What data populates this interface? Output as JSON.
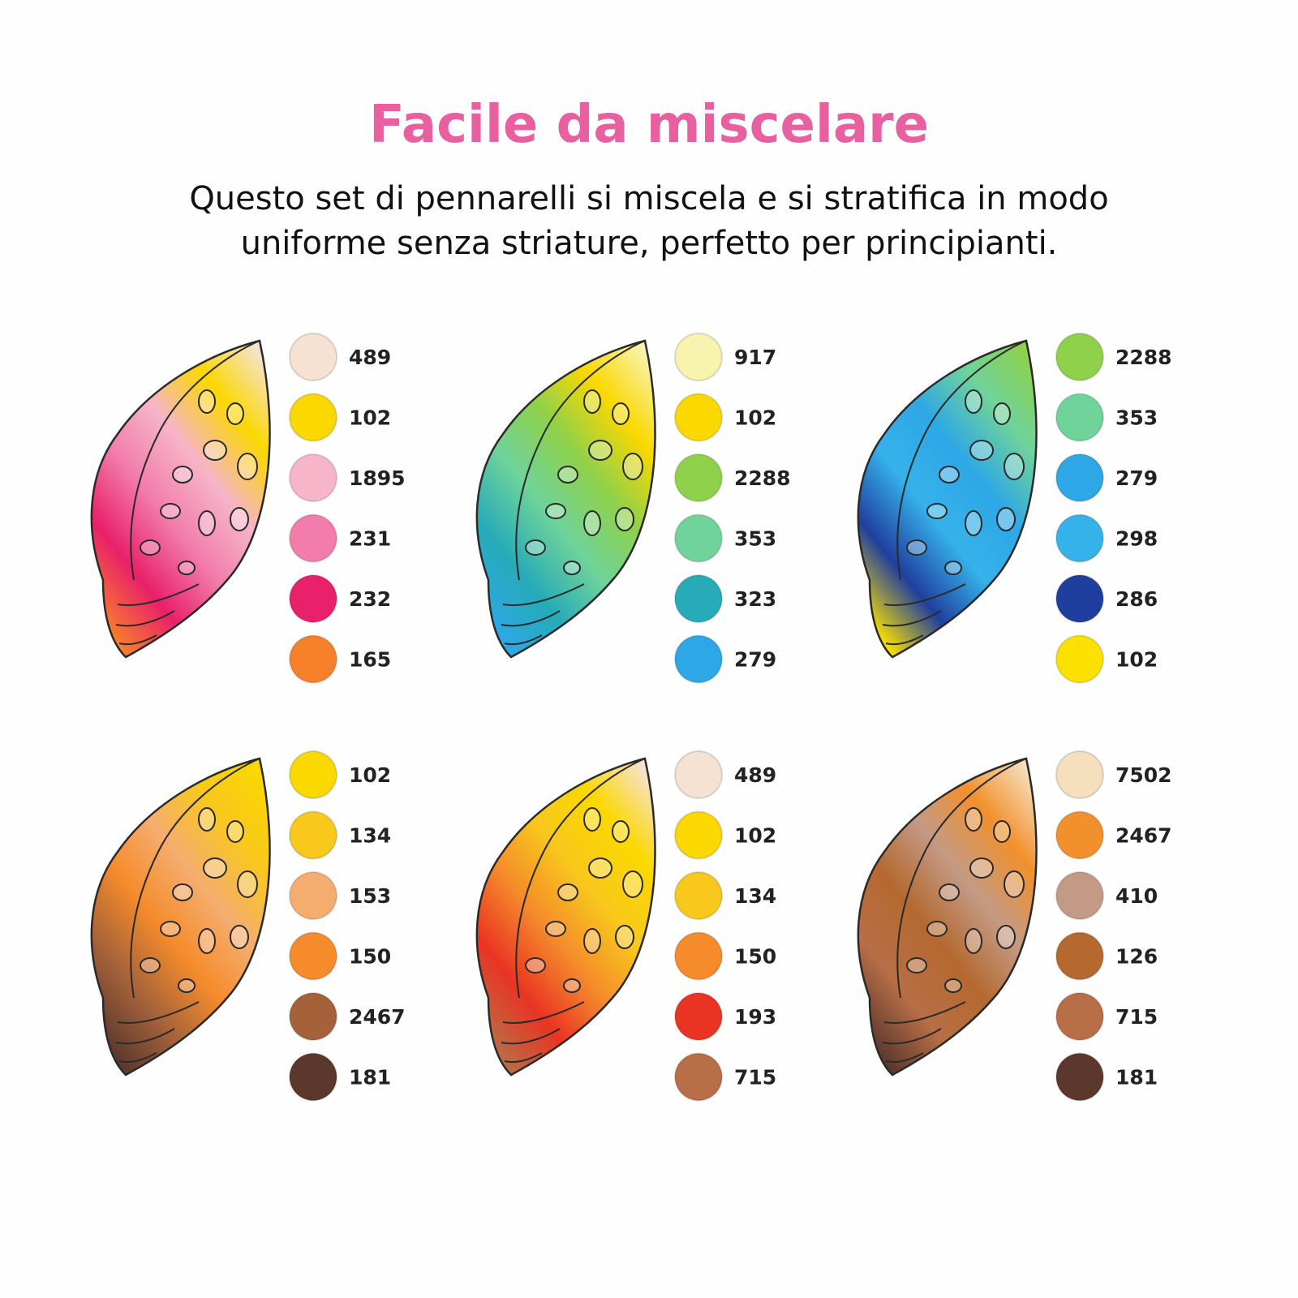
{
  "header": {
    "title": "Facile da miscelare",
    "subtitle": [
      "Questo set di pennarelli si miscela e si stratifica in modo",
      "uniforme senza striature, perfetto per principianti."
    ]
  },
  "panels": [
    {
      "swatches": [
        {
          "code": "489",
          "color": "#f6e2d2"
        },
        {
          "code": "102",
          "color": "#fbd800"
        },
        {
          "code": "1895",
          "color": "#f6b5c8"
        },
        {
          "code": "231",
          "color": "#f27cab"
        },
        {
          "code": "232",
          "color": "#e9206a"
        },
        {
          "code": "165",
          "color": "#f7812a"
        }
      ]
    },
    {
      "swatches": [
        {
          "code": "917",
          "color": "#f9f3b0"
        },
        {
          "code": "102",
          "color": "#fbd800"
        },
        {
          "code": "2288",
          "color": "#8fd14a"
        },
        {
          "code": "353",
          "color": "#6fd39a"
        },
        {
          "code": "323",
          "color": "#27abb8"
        },
        {
          "code": "279",
          "color": "#2ea7e6"
        }
      ]
    },
    {
      "swatches": [
        {
          "code": "2288",
          "color": "#8fd14a"
        },
        {
          "code": "353",
          "color": "#6fd39a"
        },
        {
          "code": "279",
          "color": "#2ea7e6"
        },
        {
          "code": "298",
          "color": "#35b2ea"
        },
        {
          "code": "286",
          "color": "#1f3f9e"
        },
        {
          "code": "102",
          "color": "#fbe000"
        }
      ]
    },
    {
      "swatches": [
        {
          "code": "102",
          "color": "#fbd800"
        },
        {
          "code": "134",
          "color": "#f8c81c"
        },
        {
          "code": "153",
          "color": "#f5ad6f"
        },
        {
          "code": "150",
          "color": "#f58b2b"
        },
        {
          "code": "2467",
          "color": "#a5623a"
        },
        {
          "code": "181",
          "color": "#5b372c"
        }
      ]
    },
    {
      "swatches": [
        {
          "code": "489",
          "color": "#f6e2d2"
        },
        {
          "code": "102",
          "color": "#fbd800"
        },
        {
          "code": "134",
          "color": "#f8c81c"
        },
        {
          "code": "150",
          "color": "#f58b2b"
        },
        {
          "code": "193",
          "color": "#ea3423"
        },
        {
          "code": "715",
          "color": "#b86e46"
        }
      ]
    },
    {
      "swatches": [
        {
          "code": "7502",
          "color": "#f5dfbd"
        },
        {
          "code": "2467",
          "color": "#f2902c"
        },
        {
          "code": "410",
          "color": "#c39a85"
        },
        {
          "code": "126",
          "color": "#b5692f"
        },
        {
          "code": "715",
          "color": "#b86e46"
        },
        {
          "code": "181",
          "color": "#5b372c"
        }
      ]
    }
  ]
}
